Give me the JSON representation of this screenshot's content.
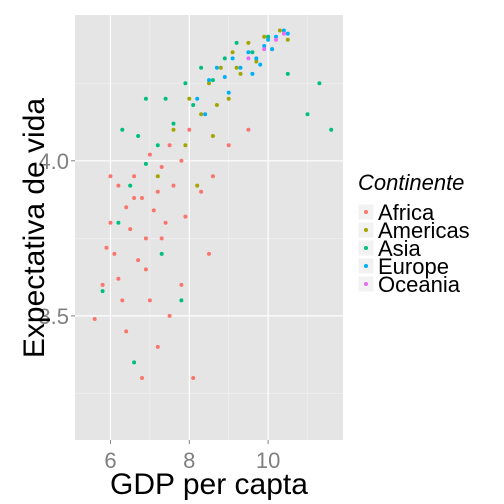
{
  "chart_data": {
    "type": "scatter",
    "title": "",
    "xlabel": "GDP per capta",
    "ylabel": "Expectativa de vida",
    "xlim": [
      5.1,
      11.9
    ],
    "ylim": [
      3.1,
      4.47
    ],
    "x_ticks": [
      6,
      8,
      10
    ],
    "x_tick_labels": [
      "6",
      "8",
      "10"
    ],
    "y_ticks": [
      3.5,
      4.0
    ],
    "y_tick_labels": [
      "3.5",
      "4.0"
    ],
    "grid": true,
    "legend": {
      "title": "Continente",
      "placement": "right"
    },
    "series": [
      {
        "name": "Africa",
        "color": "#F8766D",
        "points": [
          [
            5.6,
            3.49
          ],
          [
            5.8,
            3.6
          ],
          [
            5.9,
            3.72
          ],
          [
            6.0,
            3.8
          ],
          [
            6.1,
            3.7
          ],
          [
            6.2,
            3.92
          ],
          [
            6.3,
            3.55
          ],
          [
            6.4,
            3.85
          ],
          [
            6.5,
            3.78
          ],
          [
            6.6,
            3.95
          ],
          [
            6.7,
            3.68
          ],
          [
            6.8,
            3.88
          ],
          [
            6.9,
            3.75
          ],
          [
            7.0,
            4.02
          ],
          [
            7.1,
            3.84
          ],
          [
            7.2,
            3.9
          ],
          [
            7.3,
            3.98
          ],
          [
            7.4,
            3.8
          ],
          [
            7.5,
            4.05
          ],
          [
            7.6,
            3.92
          ],
          [
            7.8,
            4.0
          ],
          [
            8.0,
            4.1
          ],
          [
            8.3,
            3.9
          ],
          [
            8.6,
            3.95
          ],
          [
            9.0,
            4.05
          ],
          [
            9.5,
            4.1
          ],
          [
            6.4,
            3.45
          ],
          [
            7.0,
            3.55
          ],
          [
            7.2,
            3.4
          ],
          [
            7.8,
            3.6
          ],
          [
            8.1,
            3.3
          ],
          [
            6.9,
            3.65
          ],
          [
            6.0,
            3.95
          ],
          [
            6.2,
            3.62
          ],
          [
            6.6,
            3.88
          ],
          [
            7.3,
            3.75
          ],
          [
            7.9,
            3.82
          ],
          [
            8.5,
            3.7
          ],
          [
            6.8,
            3.3
          ],
          [
            7.5,
            3.5
          ]
        ]
      },
      {
        "name": "Americas",
        "color": "#A3A500",
        "points": [
          [
            7.2,
            3.95
          ],
          [
            7.6,
            4.1
          ],
          [
            7.9,
            4.05
          ],
          [
            8.0,
            4.2
          ],
          [
            8.2,
            3.92
          ],
          [
            8.3,
            4.15
          ],
          [
            8.5,
            4.25
          ],
          [
            8.6,
            4.08
          ],
          [
            8.8,
            4.3
          ],
          [
            9.0,
            4.2
          ],
          [
            9.1,
            4.35
          ],
          [
            9.3,
            4.28
          ],
          [
            9.5,
            4.38
          ],
          [
            9.7,
            4.32
          ],
          [
            9.9,
            4.4
          ],
          [
            10.1,
            4.36
          ],
          [
            10.3,
            4.42
          ],
          [
            10.5,
            4.39
          ],
          [
            8.7,
            4.18
          ],
          [
            9.2,
            4.3
          ]
        ]
      },
      {
        "name": "Asia",
        "color": "#00BF7D",
        "points": [
          [
            5.8,
            3.58
          ],
          [
            6.2,
            3.8
          ],
          [
            6.5,
            3.92
          ],
          [
            6.7,
            4.08
          ],
          [
            6.9,
            3.99
          ],
          [
            7.2,
            4.05
          ],
          [
            7.4,
            4.2
          ],
          [
            7.6,
            4.12
          ],
          [
            7.9,
            4.25
          ],
          [
            8.1,
            4.18
          ],
          [
            8.3,
            4.3
          ],
          [
            8.6,
            4.26
          ],
          [
            8.9,
            4.33
          ],
          [
            9.2,
            4.38
          ],
          [
            9.6,
            4.35
          ],
          [
            10.0,
            4.4
          ],
          [
            10.5,
            4.28
          ],
          [
            11.0,
            4.15
          ],
          [
            11.3,
            4.25
          ],
          [
            11.6,
            4.1
          ],
          [
            6.6,
            3.35
          ],
          [
            7.3,
            3.7
          ],
          [
            7.8,
            3.55
          ],
          [
            6.9,
            4.2
          ],
          [
            6.3,
            4.1
          ]
        ]
      },
      {
        "name": "Europe",
        "color": "#00B0F6",
        "points": [
          [
            8.2,
            4.2
          ],
          [
            8.5,
            4.26
          ],
          [
            8.7,
            4.3
          ],
          [
            8.9,
            4.27
          ],
          [
            9.1,
            4.33
          ],
          [
            9.3,
            4.3
          ],
          [
            9.5,
            4.35
          ],
          [
            9.7,
            4.33
          ],
          [
            9.9,
            4.37
          ],
          [
            10.0,
            4.39
          ],
          [
            10.2,
            4.4
          ],
          [
            10.4,
            4.42
          ],
          [
            10.5,
            4.41
          ],
          [
            9.6,
            4.28
          ],
          [
            8.4,
            4.15
          ],
          [
            9.0,
            4.22
          ],
          [
            10.1,
            4.36
          ],
          [
            9.8,
            4.31
          ]
        ]
      },
      {
        "name": "Oceania",
        "color": "#E76BF3",
        "points": [
          [
            9.5,
            4.33
          ],
          [
            9.9,
            4.36
          ],
          [
            10.2,
            4.39
          ],
          [
            10.4,
            4.41
          ]
        ]
      }
    ]
  }
}
